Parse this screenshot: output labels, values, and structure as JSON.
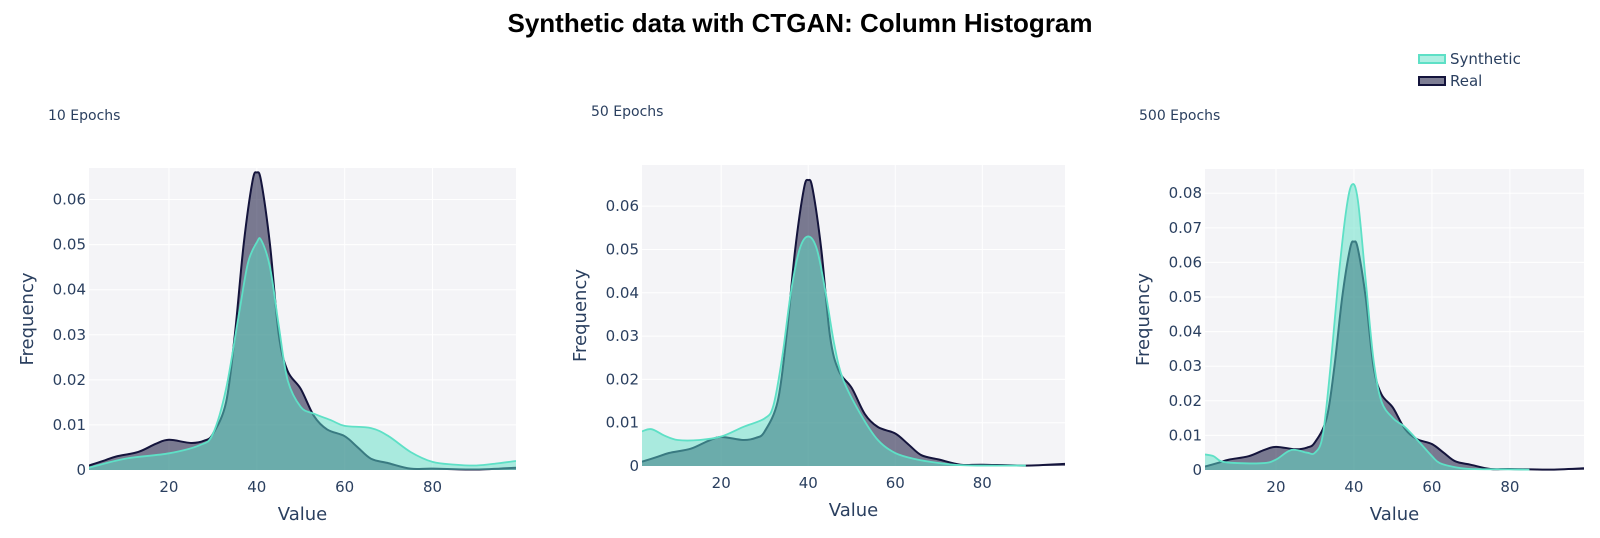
{
  "chart_data": {
    "title": "Synthetic data with CTGAN: Column Histogram",
    "legend": {
      "placement": "top-right",
      "entries": [
        "Synthetic",
        "Real"
      ]
    },
    "colors": {
      "Synthetic": "#5ee0c6",
      "Real": "#14143c",
      "plot_bg": "#f4f4f7",
      "grid": "#ffffff"
    },
    "subplots": [
      {
        "type": "area",
        "title": "10 Epochs",
        "xlabel": "Value",
        "ylabel": "Frequency",
        "xlim": [
          1.8,
          99
        ],
        "ylim": [
          0,
          0.067
        ],
        "xticks": [
          20,
          40,
          60,
          80
        ],
        "yticks": [
          0,
          0.01,
          0.02,
          0.03,
          0.04,
          0.05,
          0.06
        ],
        "ytick_labels": [
          "0",
          "0.01",
          "0.02",
          "0.03",
          "0.04",
          "0.05",
          "0.06"
        ],
        "grid": true,
        "series": [
          {
            "name": "Real",
            "x": [
              1.8,
              5,
              8,
              13,
              17,
              20,
              25,
              28,
              30,
              33,
              35,
              37,
              39,
              40,
              41,
              43,
              45,
              47,
              50,
              53,
              56,
              60,
              63,
              66,
              70,
              75,
              80,
              90,
              99
            ],
            "y": [
              0.001,
              0.002,
              0.003,
              0.004,
              0.0058,
              0.0067,
              0.006,
              0.0065,
              0.008,
              0.015,
              0.03,
              0.05,
              0.064,
              0.066,
              0.064,
              0.05,
              0.03,
              0.022,
              0.018,
              0.012,
              0.009,
              0.0075,
              0.005,
              0.0025,
              0.0015,
              0.0003,
              0.0003,
              0.0001,
              0.0005
            ]
          },
          {
            "name": "Synthetic",
            "x": [
              1.8,
              10,
              20,
              27,
              30,
              33,
              36,
              38,
              40,
              41,
              43,
              45,
              47,
              50,
              53,
              57,
              60,
              66,
              70,
              75,
              80,
              85,
              90,
              95,
              99
            ],
            "y": [
              0.0005,
              0.0025,
              0.0037,
              0.0055,
              0.008,
              0.018,
              0.035,
              0.046,
              0.0505,
              0.051,
              0.045,
              0.032,
              0.02,
              0.014,
              0.0125,
              0.011,
              0.0098,
              0.0093,
              0.0075,
              0.004,
              0.0018,
              0.0012,
              0.001,
              0.0015,
              0.002
            ]
          }
        ]
      },
      {
        "type": "area",
        "title": "50 Epochs",
        "xlabel": "Value",
        "ylabel": "Frequency",
        "xlim": [
          1.8,
          99
        ],
        "ylim": [
          0,
          0.0695
        ],
        "xticks": [
          20,
          40,
          60,
          80
        ],
        "yticks": [
          0,
          0.01,
          0.02,
          0.03,
          0.04,
          0.05,
          0.06
        ],
        "ytick_labels": [
          "0",
          "0.01",
          "0.02",
          "0.03",
          "0.04",
          "0.05",
          "0.06"
        ],
        "grid": true,
        "series": [
          {
            "name": "Real",
            "x": [
              1.8,
              5,
              8,
              13,
              17,
              20,
              25,
              28,
              30,
              33,
              35,
              37,
              39,
              40,
              41,
              43,
              45,
              47,
              50,
              53,
              56,
              60,
              63,
              66,
              70,
              75,
              80,
              90,
              99
            ],
            "y": [
              0.001,
              0.002,
              0.003,
              0.004,
              0.0058,
              0.0067,
              0.006,
              0.0065,
              0.008,
              0.015,
              0.03,
              0.05,
              0.064,
              0.066,
              0.064,
              0.05,
              0.03,
              0.022,
              0.018,
              0.012,
              0.009,
              0.0075,
              0.005,
              0.0025,
              0.0015,
              0.0003,
              0.0003,
              0.0001,
              0.0005
            ]
          },
          {
            "name": "Synthetic",
            "x": [
              1.8,
              4,
              7,
              10,
              15,
              20,
              25,
              30,
              32,
              34,
              36,
              38,
              40,
              42,
              44,
              46,
              48,
              52,
              56,
              60,
              65,
              70,
              75,
              80,
              90
            ],
            "y": [
              0.008,
              0.0085,
              0.007,
              0.006,
              0.006,
              0.0068,
              0.009,
              0.011,
              0.014,
              0.025,
              0.04,
              0.05,
              0.053,
              0.05,
              0.04,
              0.028,
              0.02,
              0.012,
              0.006,
              0.003,
              0.0015,
              0.0007,
              0.0002,
              0.0001,
              0.0001
            ]
          }
        ]
      },
      {
        "type": "area",
        "title": "500 Epochs",
        "xlabel": "Value",
        "ylabel": "Frequency",
        "xlim": [
          1.8,
          99
        ],
        "ylim": [
          0,
          0.087
        ],
        "xticks": [
          20,
          40,
          60,
          80
        ],
        "yticks": [
          0,
          0.01,
          0.02,
          0.03,
          0.04,
          0.05,
          0.06,
          0.07,
          0.08
        ],
        "ytick_labels": [
          "0",
          "0.01",
          "0.02",
          "0.03",
          "0.04",
          "0.05",
          "0.06",
          "0.07",
          "0.08"
        ],
        "grid": true,
        "series": [
          {
            "name": "Real",
            "x": [
              1.8,
              5,
              8,
              13,
              17,
              20,
              25,
              28,
              30,
              33,
              35,
              37,
              39,
              40,
              41,
              43,
              45,
              47,
              50,
              53,
              56,
              60,
              63,
              66,
              70,
              75,
              80,
              90,
              99
            ],
            "y": [
              0.001,
              0.002,
              0.003,
              0.004,
              0.0058,
              0.0067,
              0.006,
              0.0065,
              0.008,
              0.015,
              0.03,
              0.05,
              0.064,
              0.066,
              0.064,
              0.05,
              0.03,
              0.022,
              0.018,
              0.012,
              0.009,
              0.0075,
              0.005,
              0.0025,
              0.0015,
              0.0003,
              0.0003,
              0.0001,
              0.0005
            ]
          },
          {
            "name": "Synthetic",
            "x": [
              1.8,
              4,
              6,
              10,
              17,
              20,
              24,
              28,
              30,
              32,
              34,
              36,
              38,
              39.5,
              41,
              43,
              45,
              47,
              50,
              53,
              56,
              60,
              62,
              66,
              70,
              80,
              85
            ],
            "y": [
              0.0045,
              0.004,
              0.0025,
              0.002,
              0.002,
              0.003,
              0.0058,
              0.005,
              0.005,
              0.01,
              0.03,
              0.055,
              0.075,
              0.0825,
              0.078,
              0.055,
              0.032,
              0.02,
              0.015,
              0.0125,
              0.009,
              0.004,
              0.002,
              0.0008,
              0.0003,
              0.0002,
              0.0001
            ]
          }
        ]
      }
    ]
  }
}
